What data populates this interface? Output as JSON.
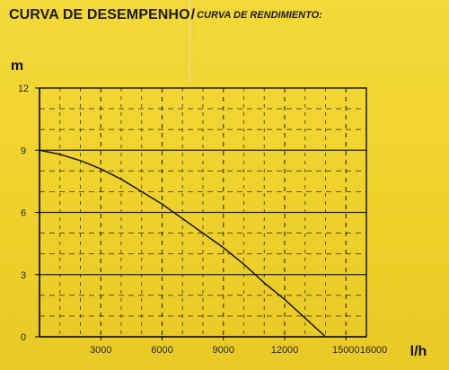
{
  "title": {
    "main": "CURVA DE DESEMPENHO",
    "sub": "CURVA DE RENDIMIENTO:"
  },
  "chart_data": {
    "type": "line",
    "title": "CURVA DE DESEMPENHO / CURVA DE RENDIMIENTO:",
    "xlabel": "l/h",
    "ylabel": "m",
    "xlim": [
      0,
      16000
    ],
    "ylim": [
      0,
      12
    ],
    "x_ticks": [
      3000,
      6000,
      9000,
      12000,
      15000,
      16000
    ],
    "y_ticks": [
      0,
      3,
      6,
      9,
      12
    ],
    "grid": true,
    "series": [
      {
        "points": [
          {
            "x": 0,
            "y": 9.0
          },
          {
            "x": 1000,
            "y": 8.8
          },
          {
            "x": 2000,
            "y": 8.5
          },
          {
            "x": 3000,
            "y": 8.1
          },
          {
            "x": 4000,
            "y": 7.6
          },
          {
            "x": 5000,
            "y": 7.0
          },
          {
            "x": 6000,
            "y": 6.4
          },
          {
            "x": 7000,
            "y": 5.7
          },
          {
            "x": 8000,
            "y": 5.0
          },
          {
            "x": 9000,
            "y": 4.3
          },
          {
            "x": 10000,
            "y": 3.5
          },
          {
            "x": 11000,
            "y": 2.6
          },
          {
            "x": 12000,
            "y": 1.8
          },
          {
            "x": 13000,
            "y": 0.9
          },
          {
            "x": 14000,
            "y": 0.0
          }
        ]
      }
    ]
  },
  "colors": {
    "background": "#f1d530",
    "ink": "#111111"
  }
}
